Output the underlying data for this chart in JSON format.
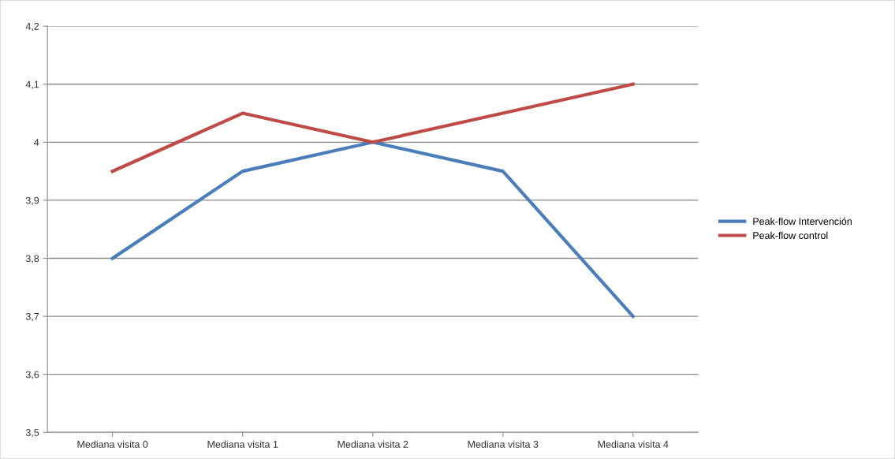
{
  "chart_data": {
    "type": "line",
    "categories": [
      "Mediana visita 0",
      "Mediana visita 1",
      "Mediana visita 2",
      "Mediana visita 3",
      "Mediana visita 4"
    ],
    "series": [
      {
        "name": "Peak-flow Intervención",
        "color": "#4a7ebb",
        "values": [
          3.8,
          3.95,
          4.0,
          3.95,
          3.7
        ]
      },
      {
        "name": "Peak-flow control",
        "color": "#be4b48",
        "values": [
          3.95,
          4.05,
          4.0,
          4.05,
          4.1
        ]
      }
    ],
    "ylim": [
      3.5,
      4.2
    ],
    "yticks": [
      {
        "value": 3.5,
        "label": "3,5"
      },
      {
        "value": 3.6,
        "label": "3,6"
      },
      {
        "value": 3.7,
        "label": "3,7"
      },
      {
        "value": 3.8,
        "label": "3,8"
      },
      {
        "value": 3.9,
        "label": "3,9"
      },
      4,
      {
        "value": 4.1,
        "label": "4,1"
      },
      {
        "value": 4.2,
        "label": "4,2"
      }
    ],
    "grid": "y",
    "legend": "right",
    "marker": "none",
    "line_style": "solid"
  }
}
